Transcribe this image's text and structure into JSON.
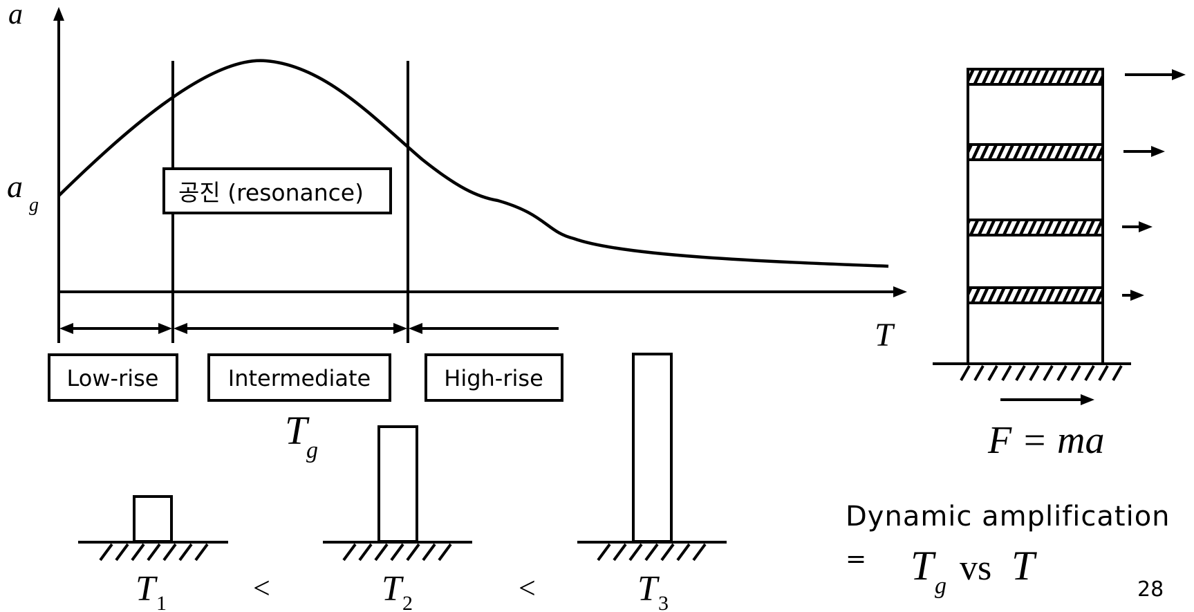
{
  "axes": {
    "y_label": "a",
    "ag_label_main": "a",
    "ag_label_sub": "g",
    "x_label": "T"
  },
  "resonance_box": {
    "label": "공진 (resonance)"
  },
  "regions": {
    "low_rise": "Low-rise",
    "intermediate": "Intermediate",
    "high_rise": "High-rise"
  },
  "tg_label": {
    "main": "T",
    "sub": "g"
  },
  "buildings": [
    {
      "main": "T",
      "sub": "1"
    },
    {
      "main": "T",
      "sub": "2"
    },
    {
      "main": "T",
      "sub": "3"
    }
  ],
  "comparisons": [
    "<",
    "<"
  ],
  "force_formula": "F = ma",
  "dynamic_amplification": {
    "title": "Dynamic amplification",
    "equals": "=",
    "tg_main": "T",
    "tg_sub": "g",
    "vs": "vs",
    "t": "T"
  },
  "page_number": "28"
}
